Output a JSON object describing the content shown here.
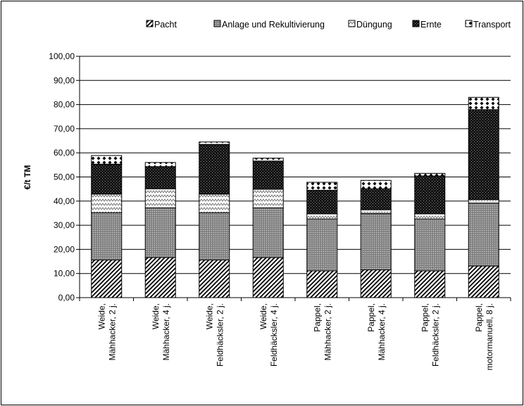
{
  "chart_data": {
    "type": "bar",
    "stacked": true,
    "title": "",
    "xlabel": "",
    "ylabel": "€/t TM",
    "ylim": [
      0,
      100
    ],
    "ytick_step": 10,
    "ytick_labels": [
      "0,00",
      "10,00",
      "20,00",
      "30,00",
      "40,00",
      "50,00",
      "60,00",
      "70,00",
      "80,00",
      "90,00",
      "100,00"
    ],
    "grid": "horizontal",
    "legend_position": "top",
    "categories": [
      [
        "Weide,",
        "Mähhacker, 2 j."
      ],
      [
        "Weide,",
        "Mähhacker, 4 j."
      ],
      [
        "Weide,",
        "Feldhäcksler, 2 j."
      ],
      [
        "Weide,",
        "Feldhäcksler, 4 j."
      ],
      [
        "Pappel,",
        "Mähhacker, 2 j."
      ],
      [
        "Pappel,",
        "Mähhacker, 4 j."
      ],
      [
        "Pappel,",
        "Feldhäcksler, 2 j."
      ],
      [
        "Pappel,",
        "motormanuell, 8 j."
      ]
    ],
    "series": [
      {
        "name": "Pacht",
        "pattern": "diagonal",
        "values": [
          15.6,
          16.6,
          15.6,
          16.6,
          11.1,
          11.5,
          11.1,
          13.1
        ]
      },
      {
        "name": "Anlage und Rekultivierung",
        "pattern": "dots",
        "values": [
          19.6,
          20.6,
          19.6,
          20.6,
          21.5,
          23.3,
          21.5,
          26.1
        ]
      },
      {
        "name": "Düngung",
        "pattern": "zigzag",
        "values": [
          7.7,
          7.9,
          7.7,
          7.7,
          2.1,
          1.6,
          2.1,
          1.5
        ]
      },
      {
        "name": "Ernte",
        "pattern": "dense",
        "values": [
          12.4,
          9.2,
          20.6,
          11.7,
          9.8,
          8.7,
          15.7,
          37.2
        ]
      },
      {
        "name": "Transport",
        "pattern": "diamonds",
        "values": [
          3.6,
          1.7,
          1.0,
          1.2,
          3.3,
          3.5,
          1.1,
          5.1
        ]
      }
    ]
  }
}
